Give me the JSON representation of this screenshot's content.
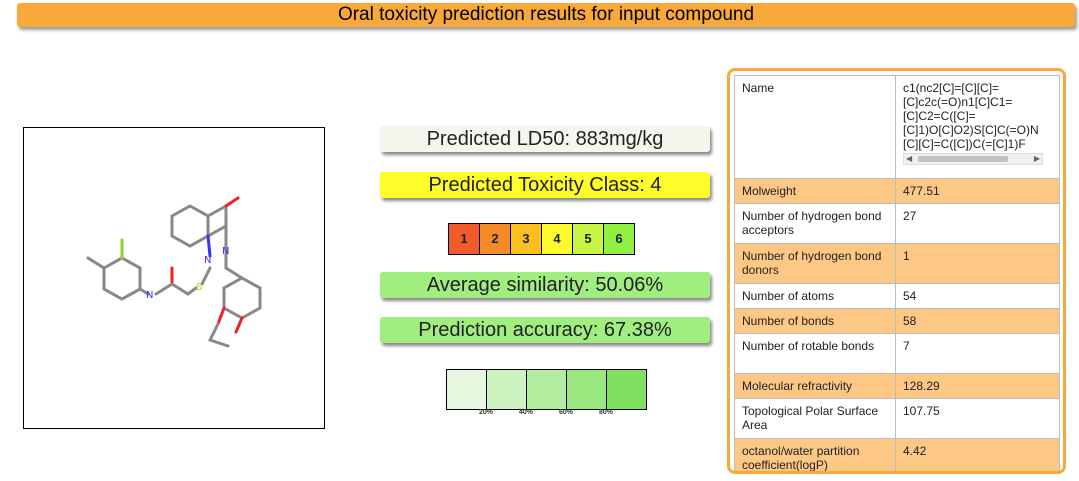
{
  "header": {
    "title": "Oral toxicity prediction results for input compound"
  },
  "results": {
    "ld50": "Predicted LD50: 883mg/kg",
    "toxicity_class": "Predicted Toxicity Class: 4",
    "similarity": "Average similarity: 50.06%",
    "accuracy": "Prediction accuracy: 67.38%"
  },
  "class_scale": {
    "labels": [
      "1",
      "2",
      "3",
      "4",
      "5",
      "6"
    ],
    "colors": [
      "#f15a2a",
      "#f58a28",
      "#fbc01e",
      "#fdfb2f",
      "#c8f445",
      "#8ff043"
    ]
  },
  "similarity_scale": {
    "colors": [
      "#e6f9e0",
      "#cdf3c0",
      "#b3ed9f",
      "#99e77f",
      "#7fe15f"
    ],
    "tick_labels": [
      "20%",
      "40%",
      "60%",
      "80%"
    ]
  },
  "properties": {
    "name_label": "Name",
    "name_value": "c1(nc2[C]=[C][C]=\n[C]c2c(=O)n1[C]C1=\n[C]C2=C([C]=\n[C]1)O[C]O2)S[C]C(=O)N\n[C][C]=C([C])C(=[C]1)F",
    "rows": [
      {
        "label": "Molweight",
        "value": "477.51"
      },
      {
        "label": "Number of hydrogen bond acceptors",
        "value": "27"
      },
      {
        "label": "Number of hydrogen bond donors",
        "value": "1"
      },
      {
        "label": "Number of atoms",
        "value": "54"
      },
      {
        "label": "Number of bonds",
        "value": "58"
      },
      {
        "label": "Number of rotable bonds",
        "value": "7"
      },
      {
        "label": "Molecular refractivity",
        "value": "128.29"
      },
      {
        "label": "Topological Polar Surface Area",
        "value": "107.75"
      },
      {
        "label": "octanol/water partition coefficient(logP)",
        "value": "4.42"
      }
    ]
  },
  "colors": {
    "accent": "#f9a93a",
    "row_alt": "#fdc885",
    "green": "#a1ed80",
    "yellow": "#fdfd2a"
  }
}
